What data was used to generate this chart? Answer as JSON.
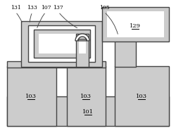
{
  "lc": "#444444",
  "fc": "#cccccc",
  "wc": "#ffffff",
  "lw": 1.0,
  "lw_thin": 0.7,
  "fs": 6.0,
  "fs_small": 5.5
}
